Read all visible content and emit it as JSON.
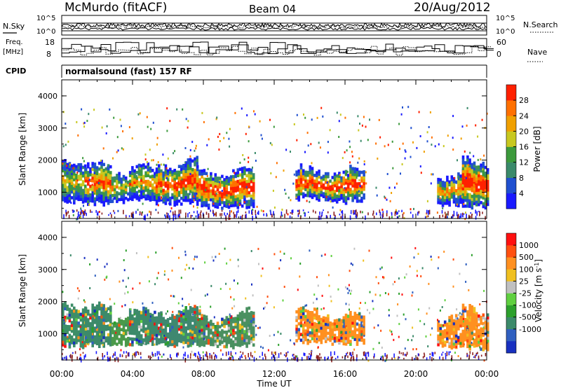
{
  "header": {
    "station": "McMurdo (fitACF)",
    "beam": "Beam 04",
    "date": "20/Aug/2012"
  },
  "top_panels": {
    "nsky_label": "N.Sky",
    "nsearch_label": "N.Search",
    "left_ticks": [
      "10^5",
      "10^0"
    ],
    "right_ticks": [
      "10^5",
      "10^0"
    ],
    "freq_label": "Freq.",
    "freq_unit": "[MHz]",
    "freq_ticks": [
      "18",
      "8"
    ],
    "nave_label": "Nave",
    "nave_ticks": [
      "60",
      "0"
    ],
    "cpid_label": "CPID",
    "cpid_text": "normalsound (fast) 157 RF"
  },
  "chart_data": [
    {
      "type": "heatmap",
      "quantity": "Power",
      "ylabel": "Slant Range [km]",
      "ylim": [
        180,
        4500
      ],
      "yticks": [
        "1000",
        "2000",
        "3000",
        "4000"
      ],
      "xlim": [
        0,
        24
      ],
      "colorbar": {
        "label": "Power [dB]",
        "ticks": [
          "4",
          "8",
          "12",
          "16",
          "20",
          "24",
          "28"
        ],
        "colors": [
          "#1a1aff",
          "#2050d0",
          "#3a8a6a",
          "#3c9a3c",
          "#c8c820",
          "#f0a000",
          "#ff7000",
          "#ff2000"
        ]
      },
      "echo_regions": [
        {
          "t_start": 0.0,
          "t_end": 1.3,
          "range_low": 700,
          "range_high": 2100,
          "level": 0.55
        },
        {
          "t_start": 1.3,
          "t_end": 2.8,
          "range_low": 650,
          "range_high": 1900,
          "level": 0.8
        },
        {
          "t_start": 2.8,
          "t_end": 3.8,
          "range_low": 700,
          "range_high": 1800,
          "level": 0.6
        },
        {
          "t_start": 3.8,
          "t_end": 5.3,
          "range_low": 750,
          "range_high": 1800,
          "level": 0.65
        },
        {
          "t_start": 5.3,
          "t_end": 7.6,
          "range_low": 650,
          "range_high": 2000,
          "level": 0.85
        },
        {
          "t_start": 7.6,
          "t_end": 10.8,
          "range_low": 550,
          "range_high": 1750,
          "level": 0.95
        },
        {
          "t_start": 13.2,
          "t_end": 15.1,
          "range_low": 800,
          "range_high": 1750,
          "level": 0.9
        },
        {
          "t_start": 15.1,
          "t_end": 17.1,
          "range_low": 700,
          "range_high": 1700,
          "level": 0.85
        },
        {
          "t_start": 21.2,
          "t_end": 22.6,
          "range_low": 600,
          "range_high": 1650,
          "level": 0.7
        },
        {
          "t_start": 22.6,
          "t_end": 24.0,
          "range_low": 550,
          "range_high": 2050,
          "level": 0.95
        }
      ]
    },
    {
      "type": "heatmap",
      "quantity": "Velocity",
      "ylabel": "Slant Range [km]",
      "ylim": [
        180,
        4500
      ],
      "yticks": [
        "1000",
        "2000",
        "3000",
        "4000"
      ],
      "xlim": [
        0,
        24
      ],
      "colorbar": {
        "label": "Velocity [m s^-1]",
        "ticks": [
          "1000",
          "500",
          "100",
          "25",
          "-25",
          "-100",
          "-500",
          "-1000"
        ],
        "colors": [
          "#1830c0",
          "#3060c0",
          "#3c8a6a",
          "#2ca02c",
          "#60d040",
          "#c0c0c0",
          "#f0c020",
          "#ff9020",
          "#ff5010",
          "#ff1010"
        ]
      },
      "echo_regions": [
        {
          "t_start": 0.0,
          "t_end": 1.3,
          "range_low": 600,
          "range_high": 2050,
          "color": "#3e8e68"
        },
        {
          "t_start": 1.3,
          "t_end": 2.8,
          "range_low": 650,
          "range_high": 1850,
          "color": "#3c8a6a"
        },
        {
          "t_start": 2.8,
          "t_end": 3.8,
          "range_low": 650,
          "range_high": 1700,
          "color": "#4a9a4a"
        },
        {
          "t_start": 3.8,
          "t_end": 5.3,
          "range_low": 700,
          "range_high": 1750,
          "color": "#3c8a6a"
        },
        {
          "t_start": 5.3,
          "t_end": 7.6,
          "range_low": 650,
          "range_high": 1800,
          "color": "#3f8870"
        },
        {
          "t_start": 7.6,
          "t_end": 10.8,
          "range_low": 600,
          "range_high": 1700,
          "color": "#4a9060"
        },
        {
          "t_start": 13.2,
          "t_end": 15.1,
          "range_low": 750,
          "range_high": 1750,
          "color": "#ff9020"
        },
        {
          "t_start": 15.1,
          "t_end": 17.1,
          "range_low": 700,
          "range_high": 1650,
          "color": "#ff9020"
        },
        {
          "t_start": 21.2,
          "t_end": 22.6,
          "range_low": 600,
          "range_high": 1650,
          "color": "#ff9020"
        },
        {
          "t_start": 22.6,
          "t_end": 24.0,
          "range_low": 550,
          "range_high": 1800,
          "color": "#ff9020"
        }
      ]
    }
  ],
  "x_axis": {
    "ticks": [
      "00:00",
      "04:00",
      "08:00",
      "12:00",
      "16:00",
      "20:00",
      "00:00"
    ],
    "label": "Time UT"
  }
}
